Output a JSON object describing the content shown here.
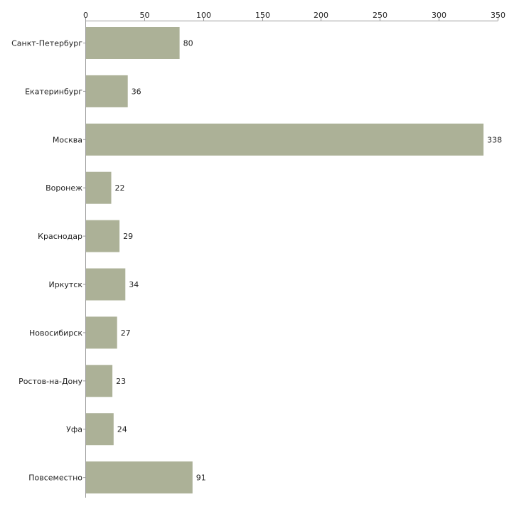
{
  "colors": {
    "bar": "#acb197",
    "axis": "#9a9a9a",
    "text": "#222222",
    "background": "#ffffff"
  },
  "chart_data": {
    "type": "bar",
    "orientation": "horizontal",
    "title": "",
    "xlabel": "",
    "ylabel": "",
    "xlim": [
      0,
      350
    ],
    "ticks": [
      0,
      50,
      100,
      150,
      200,
      250,
      300,
      350
    ],
    "grid": false,
    "legend": "none",
    "categories": [
      "Санкт-Петербург",
      "Екатеринбург",
      "Москва",
      "Воронеж",
      "Краснодар",
      "Иркутск",
      "Новосибирск",
      "Ростов-на-Дону",
      "Уфа",
      "Повсеместно"
    ],
    "values": [
      80,
      36,
      338,
      22,
      29,
      34,
      27,
      23,
      24,
      91
    ]
  }
}
